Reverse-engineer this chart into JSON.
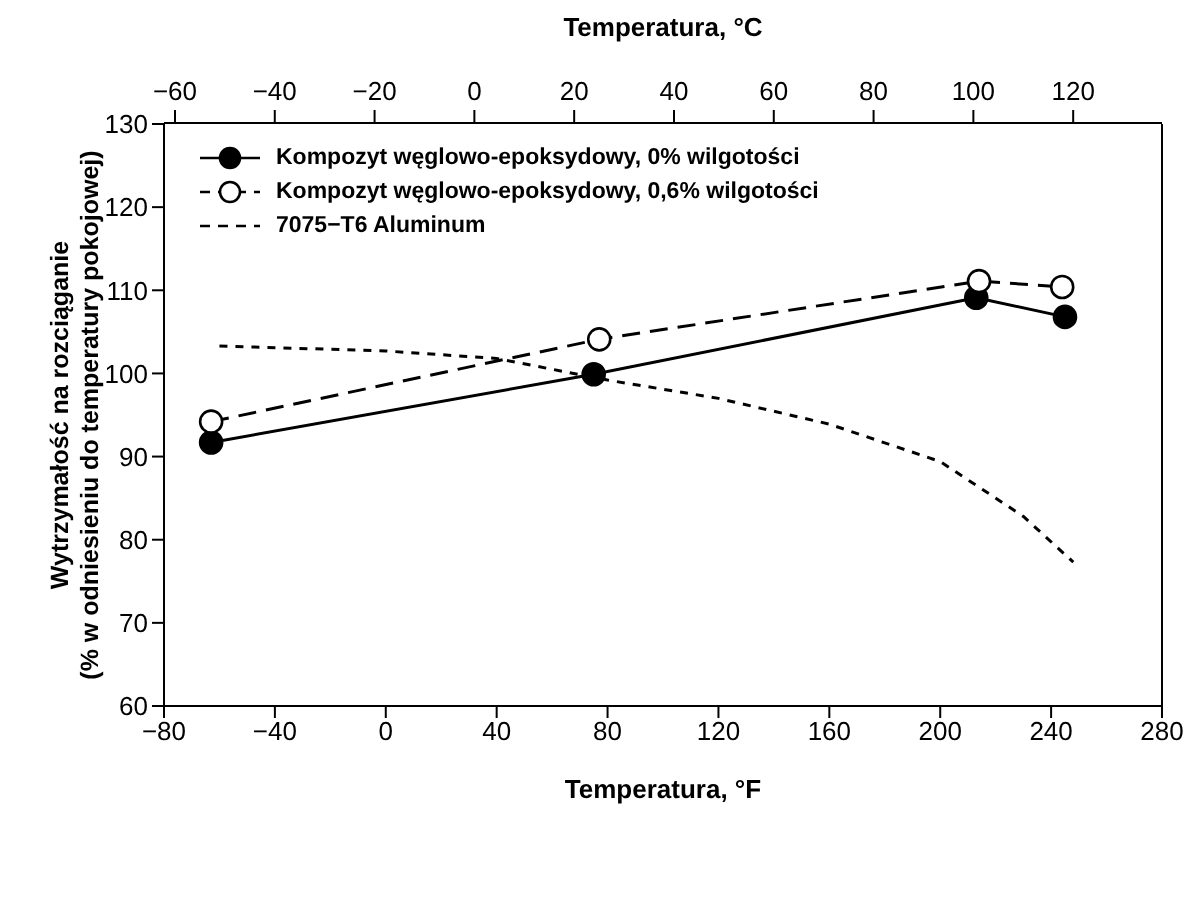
{
  "chart_data": {
    "type": "line",
    "xlabel": "Temperatura, °F",
    "x2label": "Temperatura, °C",
    "ylabel": "Wytrzymałość na rozciąganie\n(% w odniesieniu do temperatury pokojowej)",
    "xlim": [
      -80,
      280
    ],
    "xticks": [
      -80,
      -40,
      0,
      40,
      80,
      120,
      160,
      200,
      240,
      280
    ],
    "x2lim": [
      -62.2,
      137.8
    ],
    "x2ticks": [
      -60,
      -40,
      -20,
      0,
      20,
      40,
      60,
      80,
      100,
      120
    ],
    "ylim": [
      60,
      130
    ],
    "yticks": [
      60,
      70,
      80,
      90,
      100,
      110,
      120,
      130
    ],
    "grid": false,
    "legend": "top left",
    "series": [
      {
        "name": "Kompozyt węglowo-epoksydowy, 0% wilgotości",
        "color": "#000000",
        "marker": "circle",
        "line_style": "solid",
        "x": [
          -63,
          75,
          213,
          245
        ],
        "values": [
          91.7,
          99.9,
          109.1,
          106.8
        ]
      },
      {
        "name": "Kompozyt węglowo-epoksydowy, 0,6% wilgotości",
        "color": "#000000",
        "marker": "circle",
        "line_style": "dashed",
        "x": [
          -63,
          77,
          214,
          244
        ],
        "values": [
          94.2,
          104.1,
          111.1,
          110.4
        ]
      },
      {
        "name": "7075−T6  Aluminum",
        "color": "#000000",
        "marker": "none",
        "line_style": "dashed",
        "x": [
          -60,
          0,
          40,
          80,
          120,
          160,
          200,
          230,
          248
        ],
        "values": [
          103.3,
          102.7,
          101.8,
          99.2,
          97,
          93.9,
          89.4,
          82.8,
          77.3
        ]
      }
    ]
  }
}
